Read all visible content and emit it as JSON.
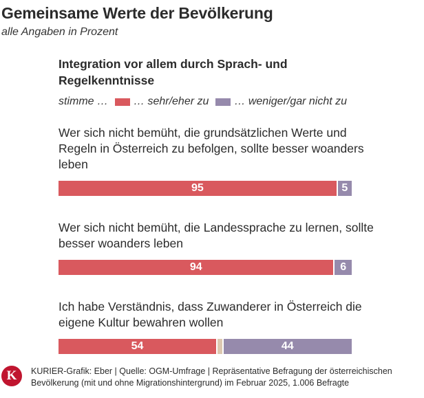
{
  "title": "Gemeinsame Werte der Bevölkerung",
  "subtitle": "alle Angaben in Prozent",
  "footer": {
    "logo_letter": "K",
    "text": "KURIER-Grafik: Eber | Quelle: OGM-Umfrage | Repräsentative Befragung der österreichischen Bevölkerung (mit und ohne Migrationshintergrund) im Februar 2025, 1.006 Befragte"
  },
  "colors": {
    "agree": "#d9595e",
    "disagree": "#968aac",
    "neutral": "#ddc8b0"
  },
  "chart_data": {
    "type": "bar",
    "orientation": "horizontal-stacked",
    "title": "Integration vor allem durch Sprach- und Regelkenntnisse",
    "legend": {
      "prefix": "stimme …",
      "items": [
        "… sehr/eher zu",
        "… weniger/gar nicht zu"
      ]
    },
    "categories": [
      "Wer sich nicht bemüht, die grundsätzlichen Werte und Regeln in Österreich zu befolgen, sollte besser woanders leben",
      "Wer sich nicht bemüht, die Landessprache zu lernen, sollte besser woanders leben",
      "Ich habe Verständnis, dass Zuwanderer in Österreich die eigene Kultur bewahren wollen"
    ],
    "series": [
      {
        "name": "… sehr/eher zu",
        "values": [
          95,
          94,
          54
        ]
      },
      {
        "name": "… weniger/gar nicht zu",
        "values": [
          5,
          6,
          44
        ]
      }
    ],
    "remainder": [
      0,
      0,
      2
    ],
    "xlim": [
      0,
      100
    ]
  }
}
